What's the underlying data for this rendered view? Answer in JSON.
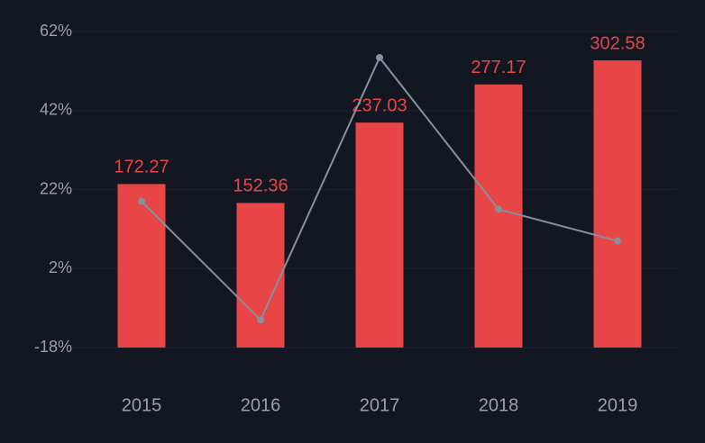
{
  "chart_data": {
    "type": "bar-line",
    "categories": [
      "2015",
      "2016",
      "2017",
      "2018",
      "2019"
    ],
    "series": [
      {
        "type": "bar",
        "axis": "y2",
        "color": "#e84646",
        "values": [
          172.27,
          152.36,
          237.03,
          277.17,
          302.58
        ]
      },
      {
        "type": "line",
        "axis": "y",
        "color": "#8a8f9e",
        "values": [
          19,
          -11,
          55.4,
          17,
          9
        ]
      }
    ],
    "ylim": [
      -18,
      62
    ],
    "yticks": [
      {
        "value": -18,
        "label": "-18%"
      },
      {
        "value": 2,
        "label": "2%"
      },
      {
        "value": 22,
        "label": "22%"
      },
      {
        "value": 42,
        "label": "42%"
      },
      {
        "value": 62,
        "label": "62%"
      }
    ],
    "y2lim": [
      0,
      333
    ],
    "grid": true
  }
}
